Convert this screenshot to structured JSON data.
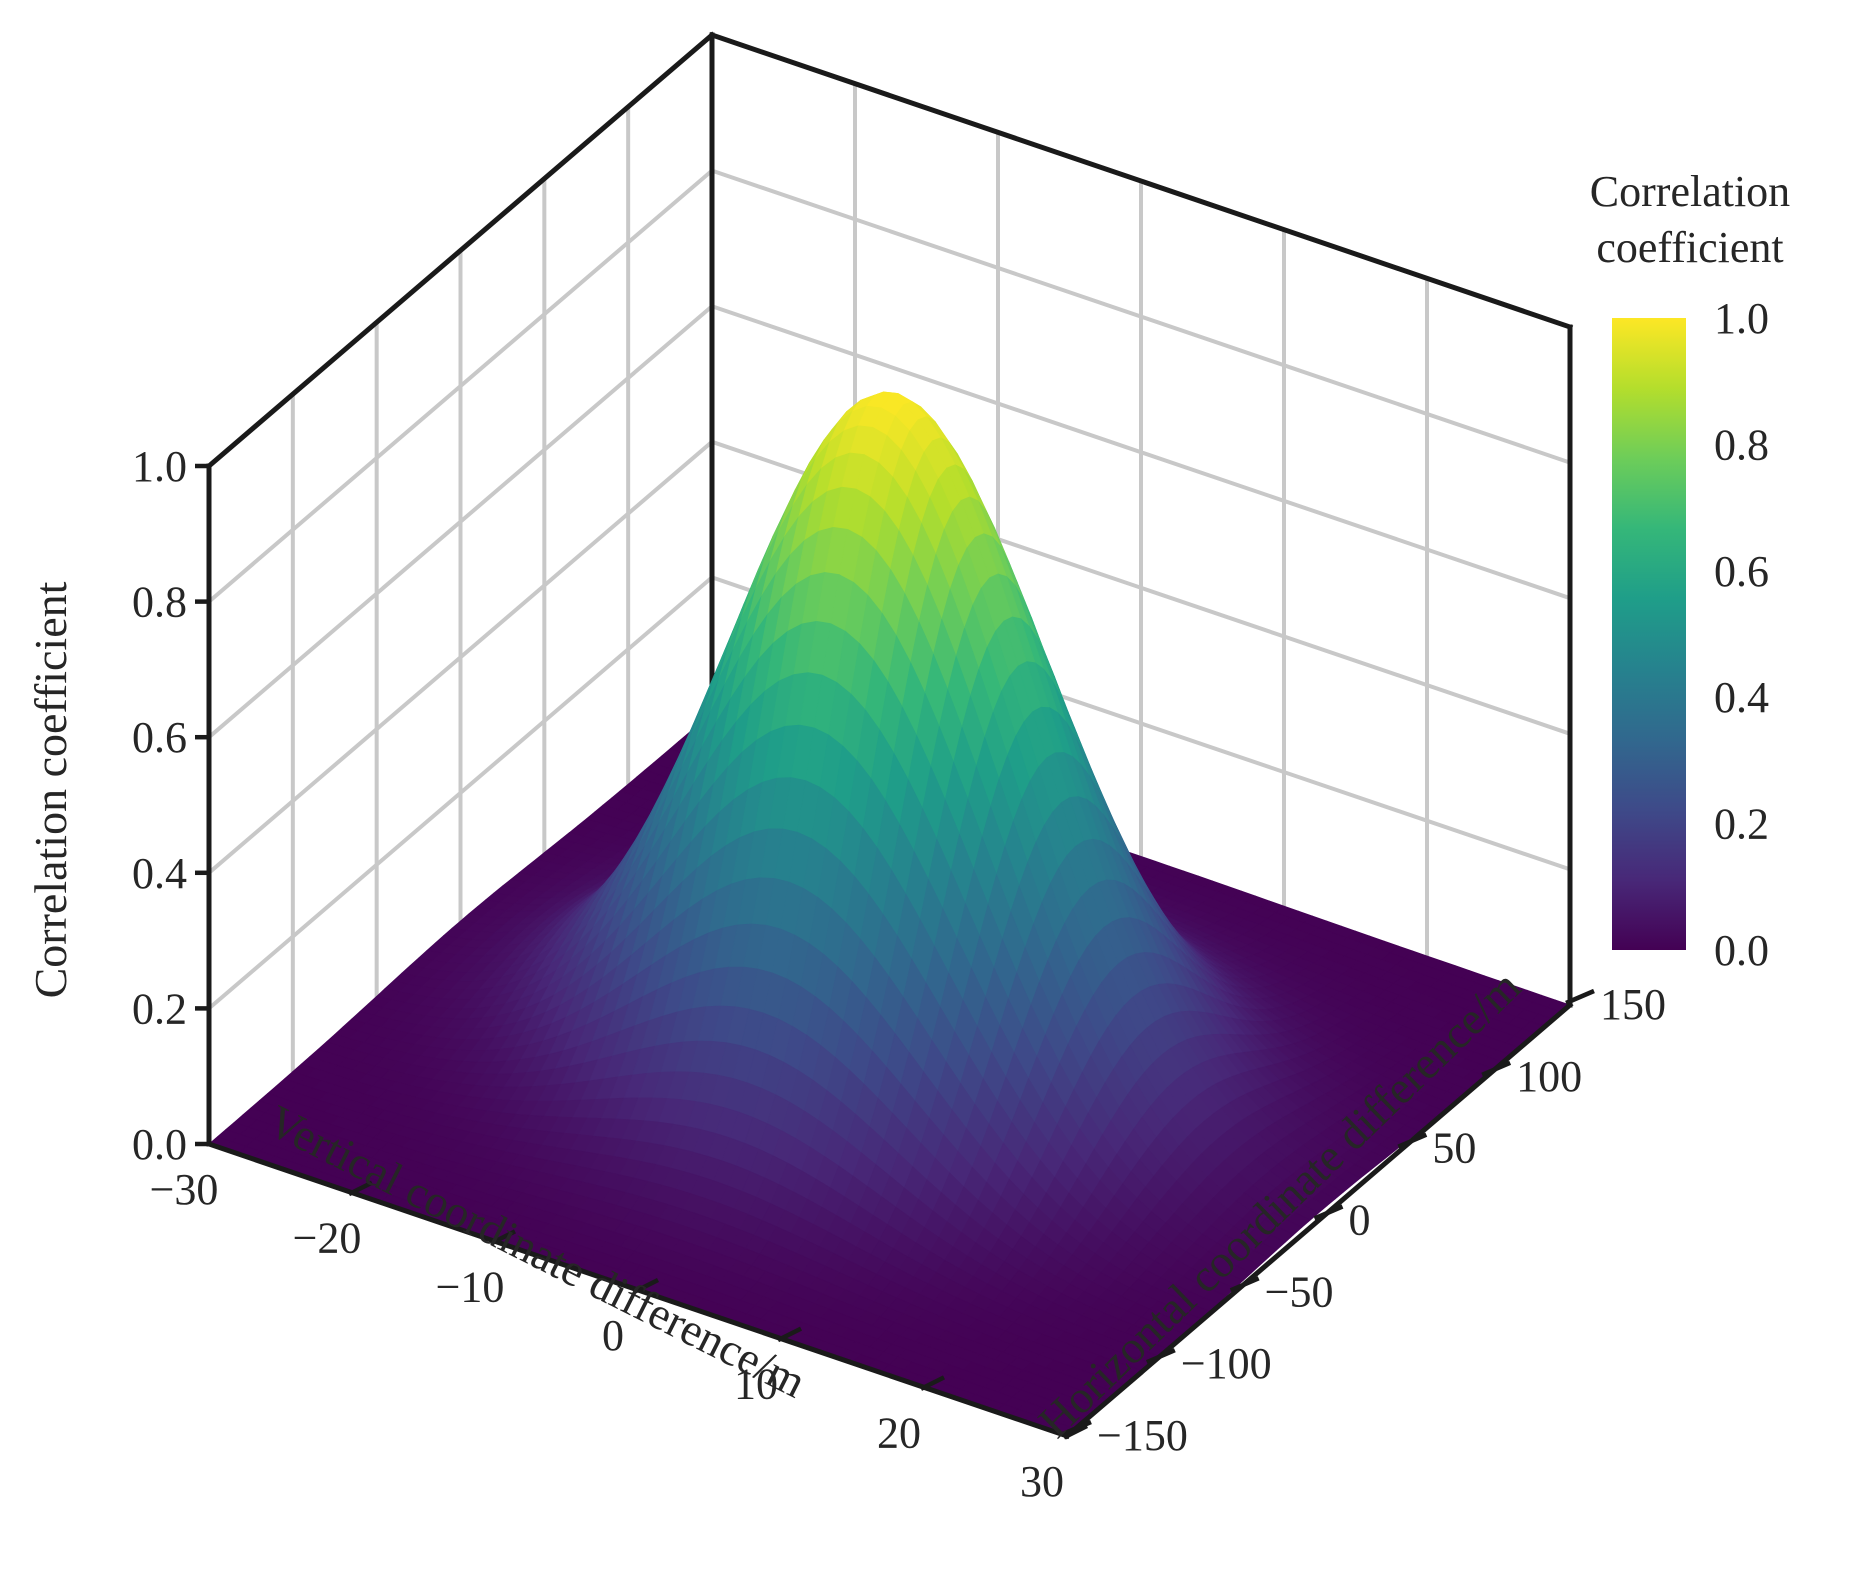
{
  "chart_data": {
    "type": "surface",
    "title": "",
    "function": "exp(-((x/sx)^2 + (y/sy)^2)/2)",
    "x_axis": {
      "label": "Vertical coordinate difference/m",
      "ticks": [
        -30,
        -20,
        -10,
        0,
        10,
        20,
        30
      ],
      "tick_labels": [
        "−30",
        "−20",
        "−10",
        "0",
        "10",
        "20",
        "30"
      ],
      "range": [
        -30,
        30
      ]
    },
    "y_axis": {
      "label": "Horizontal coordinate difference/m",
      "ticks": [
        -150,
        -100,
        -50,
        0,
        50,
        100,
        150
      ],
      "tick_labels": [
        "−150",
        "−100",
        "−50",
        "0",
        "50",
        "100",
        "150"
      ],
      "range": [
        -150,
        150
      ]
    },
    "z_axis": {
      "label": "Correlation coefficient",
      "ticks": [
        0,
        0.2,
        0.4,
        0.6,
        0.8,
        1.0
      ],
      "tick_labels": [
        "0.0",
        "0.2",
        "0.4",
        "0.6",
        "0.8",
        "1.0"
      ],
      "range": [
        0,
        1
      ]
    },
    "surface": {
      "peak": {
        "x": 0,
        "y": 0,
        "z": 1.0
      },
      "sigma_x": 10,
      "sigma_y": 45,
      "x_range": [
        -30,
        30
      ],
      "y_range": [
        -150,
        150
      ]
    },
    "colorbar": {
      "title_lines": [
        "Correlation",
        "coefficient"
      ],
      "colormap": "viridis",
      "ticks": [
        0,
        0.2,
        0.4,
        0.6,
        0.8,
        1.0
      ],
      "tick_labels": [
        "0.0",
        "0.2",
        "0.4",
        "0.6",
        "0.8",
        "1.0"
      ],
      "range": [
        0,
        1
      ]
    },
    "grid": true
  }
}
